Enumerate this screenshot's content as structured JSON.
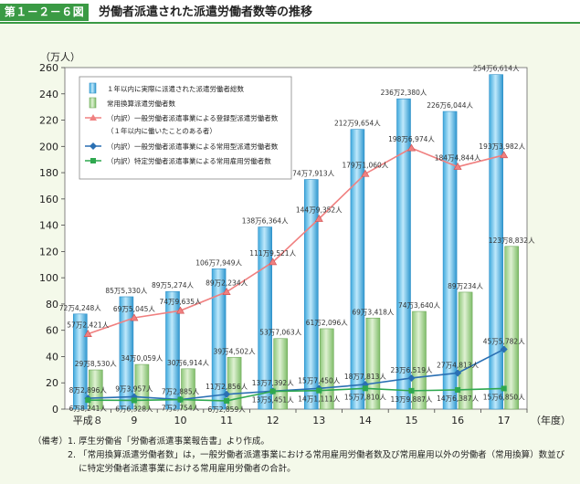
{
  "figure": {
    "label": "第１－２－６図",
    "title": "労働者派遣された派遣労働者数等の推移"
  },
  "chart_data": {
    "type": "bar",
    "ylabel": "（万人）",
    "xlabel": "（年度）",
    "ylim": [
      0,
      260
    ],
    "yticks": [
      0,
      20,
      40,
      60,
      80,
      100,
      120,
      140,
      160,
      180,
      200,
      220,
      240,
      260
    ],
    "categories": [
      "平成８",
      "9",
      "10",
      "11",
      "12",
      "13",
      "14",
      "15",
      "16",
      "17"
    ],
    "legend_position": "top-left",
    "series": [
      {
        "name": "１年以内に実際に派遣された派遣労働者総数",
        "kind": "bar",
        "color": "#5bbfe8",
        "values": [
          72.4248,
          85.533,
          89.5274,
          106.7949,
          138.6364,
          174.7913,
          212.9654,
          236.238,
          226.6044,
          254.6614
        ],
        "labels": [
          "72万4,248人",
          "85万5,330人",
          "89万5,274人",
          "106万7,949人",
          "138万6,364人",
          "174万7,913人",
          "212万9,654人",
          "236万2,380人",
          "226万6,044人",
          "254万6,614人"
        ]
      },
      {
        "name": "常用換算派遣労働者数",
        "kind": "bar",
        "color": "#a8d68f",
        "values": [
          29.853,
          34.0059,
          30.6914,
          39.4502,
          53.7063,
          61.2096,
          69.3418,
          74.364,
          89.0234,
          123.8832
        ],
        "labels": [
          "29万8,530人",
          "34万0,059人",
          "30万6,914人",
          "39万4,502人",
          "53万7,063人",
          "61万2,096人",
          "69万3,418人",
          "74万3,640人",
          "89万234人",
          "123万8,832人"
        ]
      },
      {
        "name": "（内訳）一般労働者派遣事業による登録型派遣労働者数",
        "name2": "（１年以内に働いたことのある者）",
        "kind": "line",
        "color": "#f08080",
        "marker": "triangle",
        "values": [
          57.2421,
          69.5045,
          74.9635,
          89.2234,
          111.9521,
          144.9352,
          179.106,
          198.6974,
          184.4844,
          193.3982
        ],
        "labels": [
          "57万2,421人",
          "69万5,045人",
          "74万9,635人",
          "89万2,234人",
          "111万9,521人",
          "144万9,352人",
          "179万1,060人",
          "198万6,974人",
          "184万4,844人",
          "193万3,982人"
        ]
      },
      {
        "name": "（内訳）一般労働者派遣事業による常用型派遣労働者数",
        "kind": "line",
        "color": "#2a6fb3",
        "marker": "diamond",
        "values": [
          8.2896,
          9.3957,
          7.2885,
          11.2856,
          13.7392,
          15.745,
          18.7813,
          23.6519,
          27.4813,
          45.5782
        ],
        "labels": [
          "8万2,896人",
          "9万3,957人",
          "7万2,885人",
          "11万2,856人",
          "13万7,392人",
          "15万7,450人",
          "18万7,813人",
          "23万6,519人",
          "27万4,813人",
          "45万5,782人"
        ]
      },
      {
        "name": "（内訳）特定労働者派遣事業による常用雇用労働者数",
        "kind": "line",
        "color": "#2fa84f",
        "marker": "square",
        "values": [
          6.8241,
          6.6328,
          7.2754,
          6.2859,
          13.5451,
          14.1111,
          15.781,
          13.9887,
          14.6387,
          15.685
        ],
        "labels": [
          "6万8,241人",
          "6万6,328人",
          "7万2,754人",
          "6万2,859人",
          "13万5,451人",
          "14万1,111人",
          "15万7,810人",
          "13万9,887人",
          "14万6,387人",
          "15万6,850人"
        ]
      }
    ]
  },
  "notes": [
    {
      "lead": "（備考）1. ",
      "text": "厚生労働省「労働者派遣事業報告書」より作成。"
    },
    {
      "lead": "　　　　2. ",
      "text": "「常用換算派遣労働者数」は，一般労働者派遣事業における常用雇用労働者数及び常用雇用以外の労働者（常用換算）数並びに特定労働者派遣事業における常用雇用労働者の合計。"
    }
  ]
}
